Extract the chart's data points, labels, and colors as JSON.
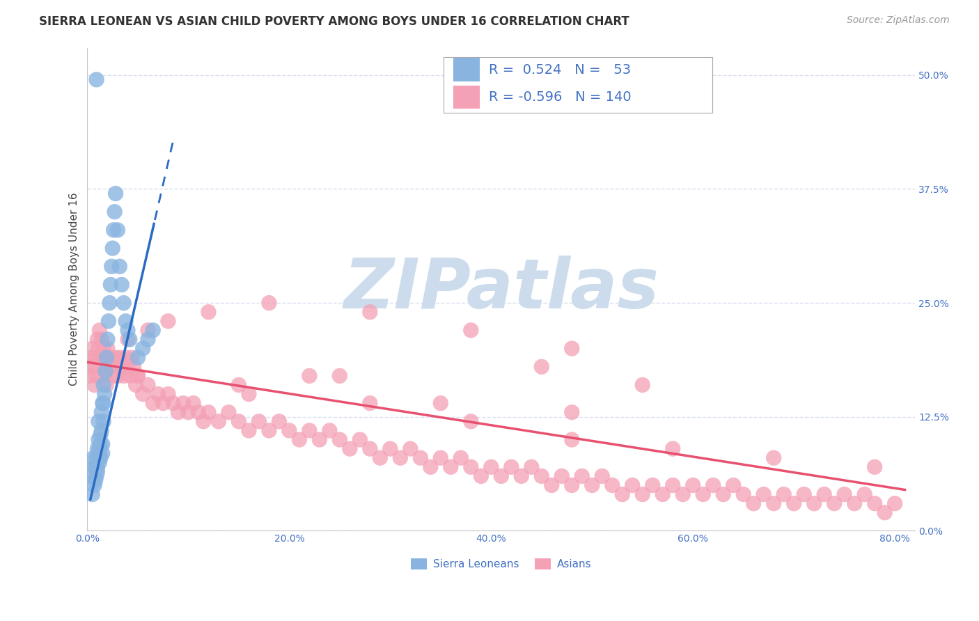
{
  "title": "SIERRA LEONEAN VS ASIAN CHILD POVERTY AMONG BOYS UNDER 16 CORRELATION CHART",
  "source": "Source: ZipAtlas.com",
  "ylabel": "Child Poverty Among Boys Under 16",
  "xlim": [
    0.0,
    0.82
  ],
  "ylim": [
    0.0,
    0.53
  ],
  "xlabel_vals": [
    0.0,
    0.2,
    0.4,
    0.6,
    0.8
  ],
  "xlabel_ticks": [
    "0.0%",
    "20.0%",
    "40.0%",
    "60.0%",
    "80.0%"
  ],
  "ylabel_vals": [
    0.0,
    0.125,
    0.25,
    0.375,
    0.5
  ],
  "ylabel_ticks": [
    "0.0%",
    "12.5%",
    "25.0%",
    "37.5%",
    "50.0%"
  ],
  "sierra_R": 0.524,
  "sierra_N": 53,
  "asian_R": -0.596,
  "asian_N": 140,
  "sierra_color": "#8ab4e0",
  "asian_color": "#f4a0b5",
  "sierra_line_color": "#2a6cc3",
  "asian_line_color": "#e85070",
  "title_fontsize": 12,
  "source_fontsize": 10,
  "axis_label_fontsize": 11,
  "tick_fontsize": 10,
  "legend_fontsize": 14,
  "watermark_color": "#ccdcec",
  "background_color": "#ffffff",
  "grid_color": "#d8dff0",
  "sierra_scatter_x": [
    0.005,
    0.006,
    0.006,
    0.007,
    0.007,
    0.008,
    0.008,
    0.009,
    0.009,
    0.01,
    0.01,
    0.01,
    0.011,
    0.011,
    0.011,
    0.012,
    0.012,
    0.012,
    0.013,
    0.013,
    0.013,
    0.014,
    0.014,
    0.015,
    0.015,
    0.015,
    0.016,
    0.016,
    0.016,
    0.017,
    0.018,
    0.019,
    0.02,
    0.021,
    0.022,
    0.023,
    0.024,
    0.025,
    0.026,
    0.027,
    0.028,
    0.03,
    0.032,
    0.034,
    0.036,
    0.038,
    0.04,
    0.042,
    0.05,
    0.055,
    0.06,
    0.065,
    0.009
  ],
  "sierra_scatter_y": [
    0.04,
    0.06,
    0.08,
    0.05,
    0.07,
    0.055,
    0.07,
    0.06,
    0.08,
    0.07,
    0.09,
    0.065,
    0.08,
    0.1,
    0.12,
    0.075,
    0.085,
    0.09,
    0.095,
    0.105,
    0.08,
    0.11,
    0.13,
    0.085,
    0.095,
    0.14,
    0.12,
    0.14,
    0.16,
    0.15,
    0.175,
    0.19,
    0.21,
    0.23,
    0.25,
    0.27,
    0.29,
    0.31,
    0.33,
    0.35,
    0.37,
    0.33,
    0.29,
    0.27,
    0.25,
    0.23,
    0.22,
    0.21,
    0.19,
    0.2,
    0.21,
    0.22,
    0.495
  ],
  "asian_scatter_x": [
    0.0,
    0.002,
    0.004,
    0.005,
    0.006,
    0.007,
    0.008,
    0.009,
    0.01,
    0.011,
    0.012,
    0.013,
    0.014,
    0.015,
    0.016,
    0.017,
    0.018,
    0.019,
    0.02,
    0.022,
    0.024,
    0.026,
    0.028,
    0.03,
    0.032,
    0.034,
    0.036,
    0.038,
    0.04,
    0.042,
    0.044,
    0.046,
    0.048,
    0.05,
    0.055,
    0.06,
    0.065,
    0.07,
    0.075,
    0.08,
    0.085,
    0.09,
    0.095,
    0.1,
    0.105,
    0.11,
    0.115,
    0.12,
    0.13,
    0.14,
    0.15,
    0.16,
    0.17,
    0.18,
    0.19,
    0.2,
    0.21,
    0.22,
    0.23,
    0.24,
    0.25,
    0.26,
    0.27,
    0.28,
    0.29,
    0.3,
    0.31,
    0.32,
    0.33,
    0.34,
    0.35,
    0.36,
    0.37,
    0.38,
    0.39,
    0.4,
    0.41,
    0.42,
    0.43,
    0.44,
    0.45,
    0.46,
    0.47,
    0.48,
    0.49,
    0.5,
    0.51,
    0.52,
    0.53,
    0.54,
    0.55,
    0.56,
    0.57,
    0.58,
    0.59,
    0.6,
    0.61,
    0.62,
    0.63,
    0.64,
    0.65,
    0.66,
    0.67,
    0.68,
    0.69,
    0.7,
    0.71,
    0.72,
    0.73,
    0.74,
    0.75,
    0.76,
    0.77,
    0.78,
    0.79,
    0.8,
    0.55,
    0.45,
    0.35,
    0.25,
    0.15,
    0.05,
    0.12,
    0.08,
    0.06,
    0.04,
    0.02,
    0.16,
    0.22,
    0.28,
    0.38,
    0.48,
    0.58,
    0.68,
    0.78,
    0.38,
    0.48,
    0.28,
    0.18,
    0.48
  ],
  "asian_scatter_y": [
    0.18,
    0.17,
    0.19,
    0.2,
    0.18,
    0.16,
    0.19,
    0.17,
    0.21,
    0.2,
    0.22,
    0.19,
    0.21,
    0.18,
    0.2,
    0.17,
    0.19,
    0.16,
    0.2,
    0.18,
    0.19,
    0.17,
    0.19,
    0.17,
    0.19,
    0.18,
    0.17,
    0.19,
    0.18,
    0.17,
    0.19,
    0.18,
    0.16,
    0.17,
    0.15,
    0.16,
    0.14,
    0.15,
    0.14,
    0.15,
    0.14,
    0.13,
    0.14,
    0.13,
    0.14,
    0.13,
    0.12,
    0.13,
    0.12,
    0.13,
    0.12,
    0.11,
    0.12,
    0.11,
    0.12,
    0.11,
    0.1,
    0.11,
    0.1,
    0.11,
    0.1,
    0.09,
    0.1,
    0.09,
    0.08,
    0.09,
    0.08,
    0.09,
    0.08,
    0.07,
    0.08,
    0.07,
    0.08,
    0.07,
    0.06,
    0.07,
    0.06,
    0.07,
    0.06,
    0.07,
    0.06,
    0.05,
    0.06,
    0.05,
    0.06,
    0.05,
    0.06,
    0.05,
    0.04,
    0.05,
    0.04,
    0.05,
    0.04,
    0.05,
    0.04,
    0.05,
    0.04,
    0.05,
    0.04,
    0.05,
    0.04,
    0.03,
    0.04,
    0.03,
    0.04,
    0.03,
    0.04,
    0.03,
    0.04,
    0.03,
    0.04,
    0.03,
    0.04,
    0.03,
    0.02,
    0.03,
    0.16,
    0.18,
    0.14,
    0.17,
    0.16,
    0.17,
    0.24,
    0.23,
    0.22,
    0.21,
    0.19,
    0.15,
    0.17,
    0.14,
    0.12,
    0.1,
    0.09,
    0.08,
    0.07,
    0.22,
    0.2,
    0.24,
    0.25,
    0.13
  ],
  "sierra_trend_x": [
    0.005,
    0.065
  ],
  "sierra_trend_y_intercept": 0.02,
  "sierra_trend_slope": 4.8,
  "asian_trend_x": [
    0.0,
    0.81
  ],
  "asian_trend_y_start": 0.185,
  "asian_trend_y_end": 0.045
}
